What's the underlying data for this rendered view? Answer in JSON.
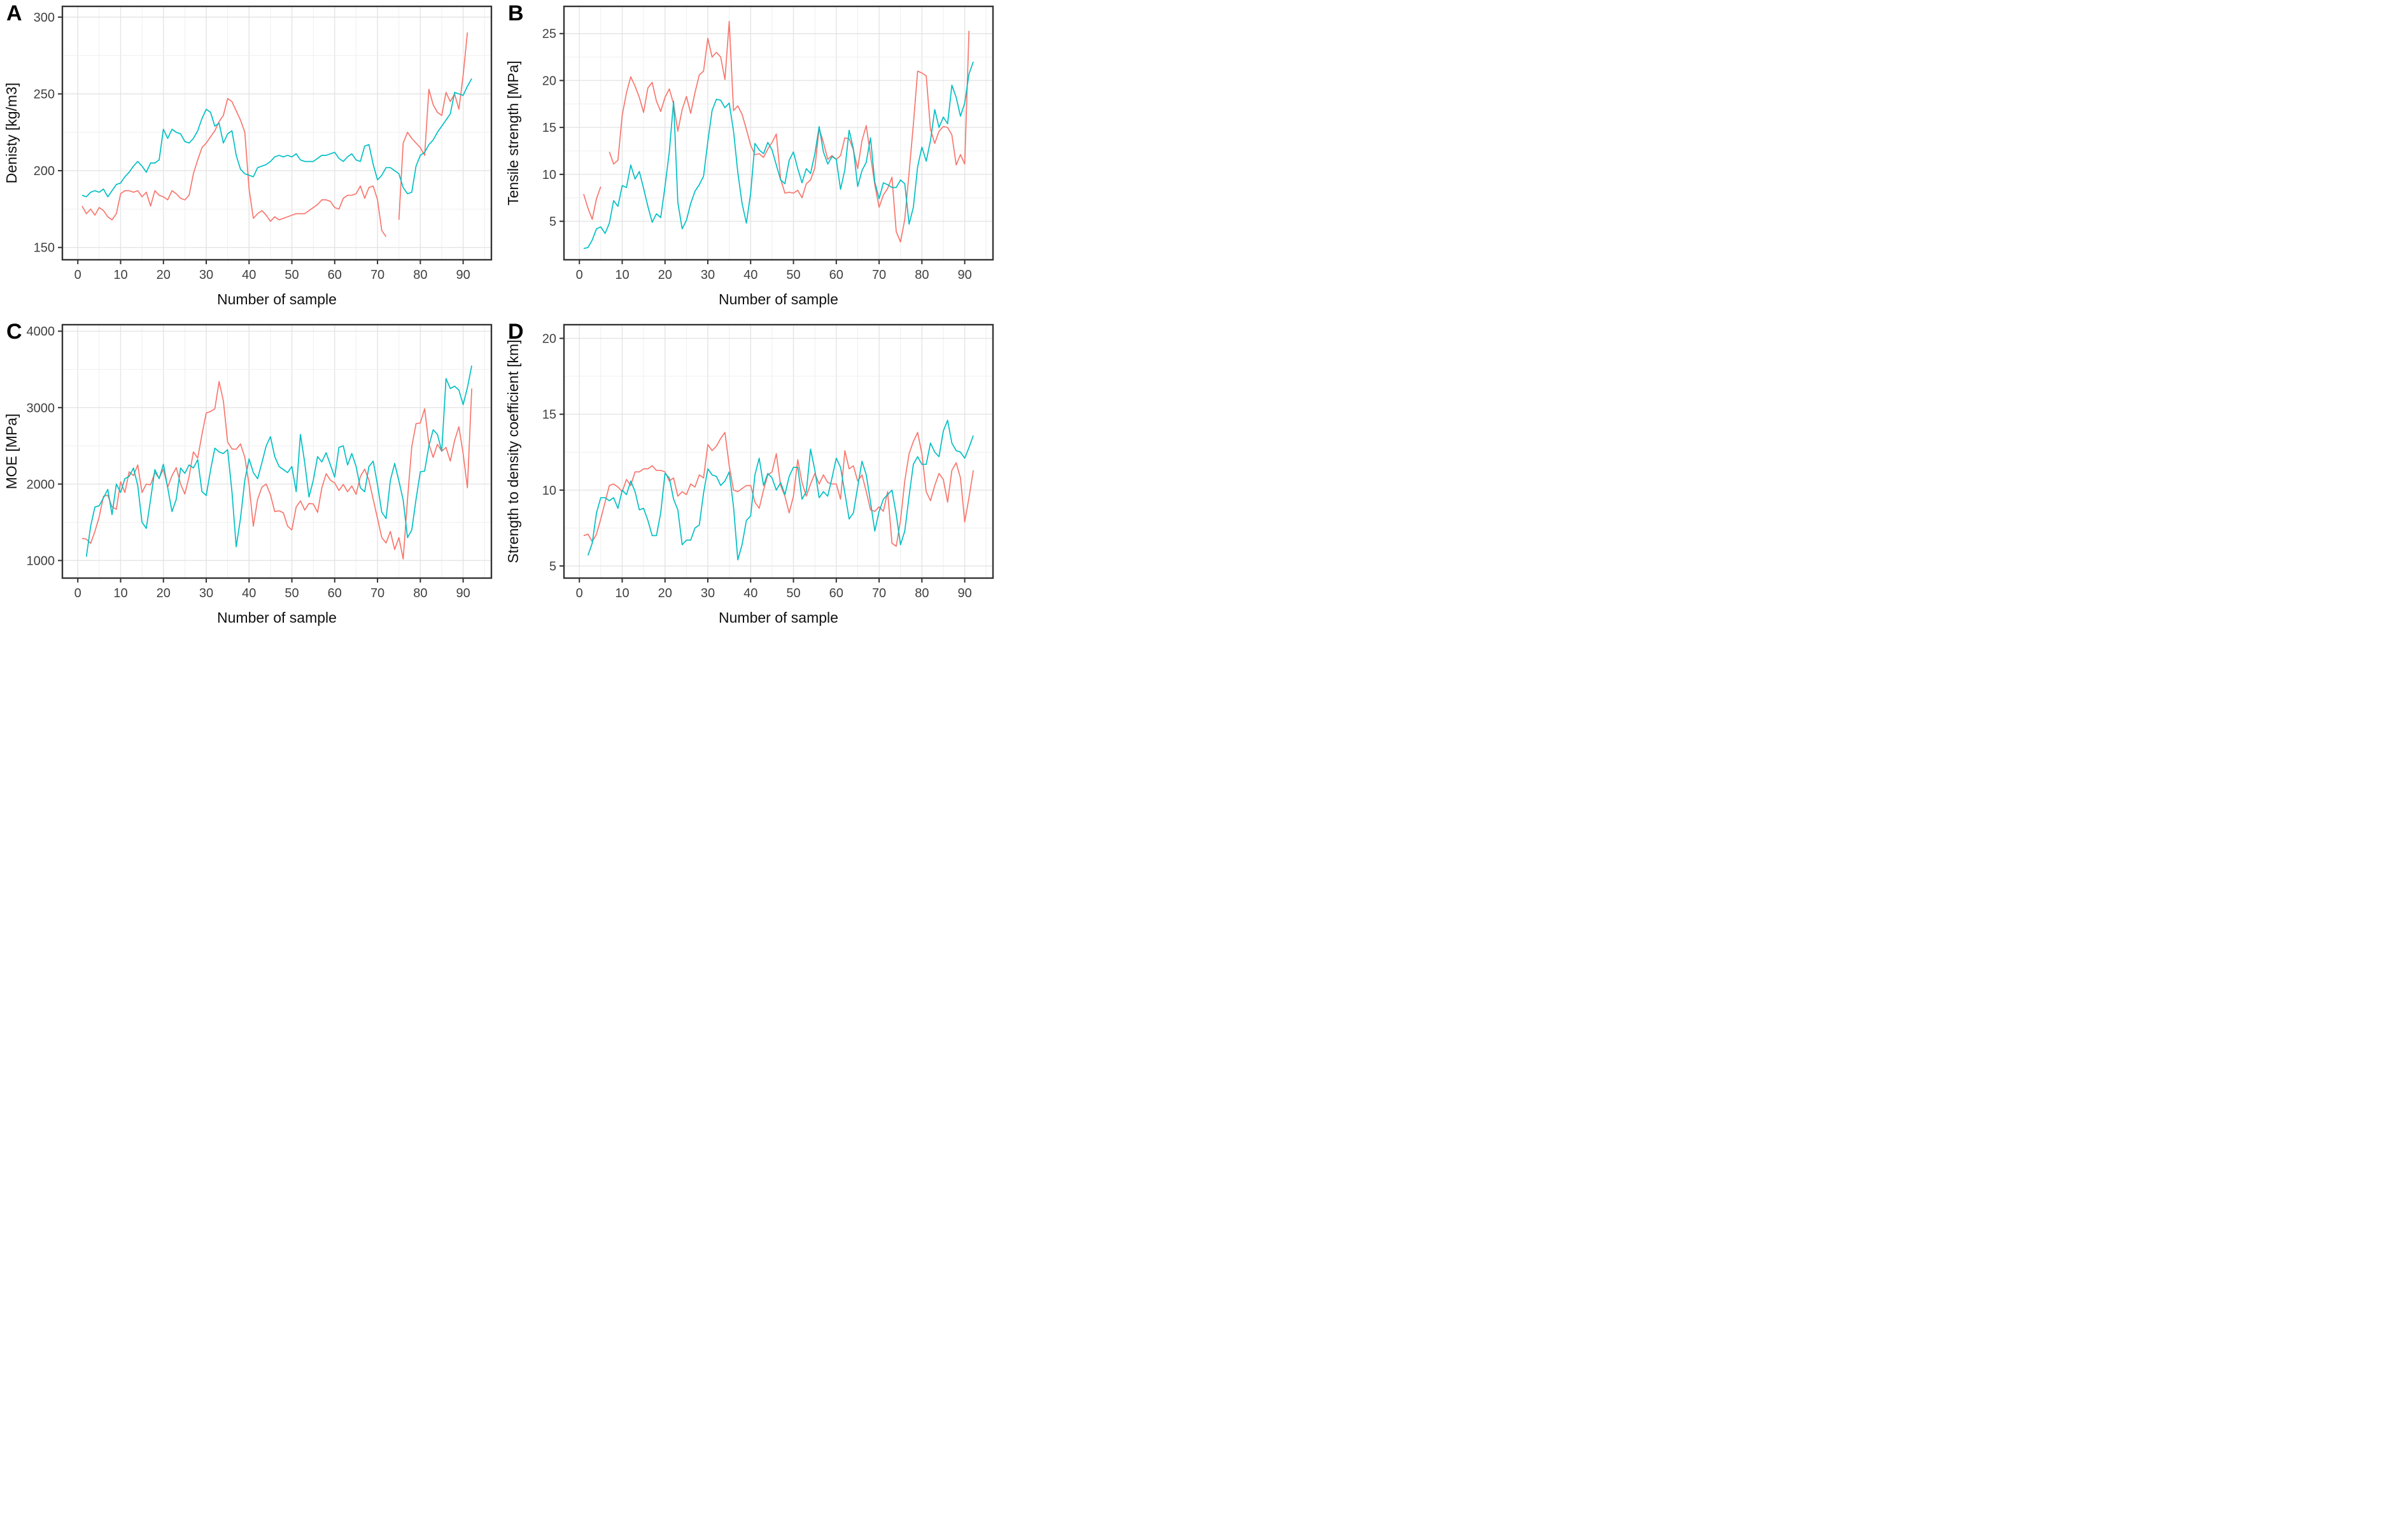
{
  "figure_title": "",
  "series_colors": {
    "red": "#F8766D",
    "teal": "#00BFC4"
  },
  "grid_colors": {
    "major": "#E4E4E4",
    "minor": "#EFEFEF",
    "border": "#333333"
  },
  "chart_data": {
    "type": "line",
    "panels": [
      {
        "letter": "A",
        "ylabel": "Denisty [kg/m3]",
        "xlabel": "Number of sample",
        "yticks": [
          150,
          200,
          250,
          300
        ],
        "yminor": [
          175,
          225,
          275
        ],
        "ylim": [
          142,
          307
        ],
        "xticks": [
          0,
          10,
          20,
          30,
          40,
          50,
          60,
          70,
          80,
          90
        ],
        "xlim": [
          -3.6,
          96.6
        ],
        "legend": "none",
        "series": [
          {
            "name": "red",
            "color": "#F8766D",
            "values": [
              177,
              172,
              175,
              171,
              176,
              174,
              170,
              168,
              172,
              185,
              187,
              187,
              186,
              187,
              183,
              186,
              177,
              187,
              184,
              183,
              181,
              187,
              185,
              182,
              181,
              184,
              198,
              207,
              215,
              218,
              222,
              226,
              232,
              236,
              247,
              245,
              239,
              233,
              225,
              188,
              169,
              172,
              174,
              171,
              167,
              170,
              168,
              169,
              170,
              171,
              172,
              172,
              172,
              174,
              176,
              178,
              181,
              181,
              180,
              176,
              175,
              182,
              184,
              184,
              185,
              190,
              182,
              189,
              190,
              181,
              161,
              157,
              null,
              null,
              168,
              218,
              225,
              221,
              218,
              215,
              210,
              253,
              243,
              238,
              236,
              251,
              245,
              250,
              240,
              262,
              290,
              null
            ]
          },
          {
            "name": "teal",
            "color": "#00BFC4",
            "values": [
              184,
              183,
              186,
              187,
              186,
              188,
              183,
              187,
              191,
              192,
              196,
              199,
              203,
              206,
              203,
              199,
              205,
              205,
              207,
              227,
              221,
              227,
              225,
              224,
              219,
              218,
              221,
              226,
              234,
              240,
              238,
              229,
              231,
              218,
              224,
              226,
              210,
              201,
              198,
              197,
              196,
              202,
              203,
              204,
              206,
              209,
              210,
              209,
              210,
              209,
              211,
              207,
              206,
              206,
              206,
              208,
              210,
              210,
              211,
              212,
              208,
              206,
              209,
              211,
              207,
              206,
              216,
              217,
              204,
              194,
              197,
              202,
              202,
              200,
              198,
              189,
              185,
              186,
              203,
              210,
              212,
              217,
              220,
              225,
              229,
              233,
              237,
              251,
              250,
              249,
              255,
              260
            ]
          }
        ]
      },
      {
        "letter": "B",
        "ylabel": "Tensile strength [MPa]",
        "xlabel": "Number of sample",
        "yticks": [
          5,
          10,
          15,
          20,
          25
        ],
        "yminor": [
          7.5,
          12.5,
          17.5,
          22.5
        ],
        "ylim": [
          0.9,
          27.9
        ],
        "xticks": [
          0,
          10,
          20,
          30,
          40,
          50,
          60,
          70,
          80,
          90
        ],
        "xlim": [
          -3.6,
          96.6
        ],
        "legend": "none",
        "series": [
          {
            "name": "red",
            "color": "#F8766D",
            "values": [
              7.9,
              6.4,
              5.2,
              7.4,
              8.7,
              null,
              12.4,
              11.1,
              11.5,
              16.3,
              18.7,
              20.4,
              19.4,
              18.2,
              16.6,
              19.2,
              19.8,
              17.8,
              16.7,
              18.2,
              19.1,
              17.5,
              14.6,
              16.9,
              18.3,
              16.5,
              18.7,
              20.6,
              21.0,
              24.5,
              22.5,
              23.0,
              22.5,
              20.1,
              26.3,
              16.8,
              17.3,
              16.4,
              14.8,
              13.1,
              12.1,
              12.2,
              11.8,
              12.7,
              13.4,
              14.3,
              9.5,
              8.0,
              8.1,
              8.0,
              8.3,
              7.5,
              9.0,
              9.4,
              10.7,
              14.9,
              13.4,
              11.6,
              12.0,
              11.6,
              12.0,
              13.9,
              13.8,
              12.6,
              10.6,
              13.6,
              15.2,
              12.0,
              8.9,
              6.5,
              7.8,
              8.5,
              9.7,
              3.9,
              2.8,
              5.2,
              10.2,
              15.3,
              21.0,
              20.8,
              20.5,
              14.8,
              13.3,
              14.6,
              15.1,
              15.0,
              14.2,
              11.0,
              12.1,
              11.1,
              25.3,
              null
            ]
          },
          {
            "name": "teal",
            "color": "#00BFC4",
            "values": [
              2.1,
              2.2,
              3.0,
              4.2,
              4.4,
              3.7,
              4.8,
              7.2,
              6.6,
              8.8,
              8.6,
              11.0,
              9.5,
              10.3,
              8.5,
              6.6,
              4.9,
              5.8,
              5.4,
              8.7,
              12.4,
              17.8,
              7.0,
              4.2,
              5.1,
              6.9,
              8.2,
              8.9,
              9.8,
              13.5,
              16.8,
              18.0,
              17.9,
              17.1,
              17.6,
              14.6,
              10.2,
              6.9,
              4.8,
              8.0,
              13.3,
              12.6,
              12.2,
              13.4,
              12.6,
              11.0,
              9.4,
              9.0,
              11.5,
              12.4,
              10.6,
              9.1,
              10.6,
              10.1,
              12.2,
              15.1,
              12.4,
              11.1,
              11.9,
              11.6,
              8.4,
              10.5,
              14.7,
              12.7,
              8.7,
              10.4,
              11.3,
              13.9,
              9.2,
              7.4,
              9.1,
              8.9,
              8.6,
              8.6,
              9.4,
              9.0,
              4.7,
              6.5,
              10.8,
              12.9,
              11.4,
              13.6,
              16.9,
              15.0,
              16.1,
              15.4,
              19.5,
              18.2,
              16.2,
              17.6,
              20.7,
              22.0
            ]
          }
        ]
      },
      {
        "letter": "C",
        "ylabel": "MOE [MPa]",
        "xlabel": "Number of sample",
        "yticks": [
          1000,
          2000,
          3000,
          4000
        ],
        "yminor": [
          1500,
          2500,
          3500
        ],
        "ylim": [
          770,
          4085
        ],
        "xticks": [
          0,
          10,
          20,
          30,
          40,
          50,
          60,
          70,
          80,
          90
        ],
        "xlim": [
          -3.6,
          96.6
        ],
        "legend": "none",
        "series": [
          {
            "name": "red",
            "color": "#F8766D",
            "values": [
              1290,
              1280,
              1225,
              1380,
              1570,
              1840,
              1855,
              1700,
              1670,
              2030,
              1890,
              2160,
              2110,
              2250,
              1890,
              2000,
              1990,
              2150,
              2080,
              2195,
              1960,
              2110,
              2215,
              2000,
              1870,
              2100,
              2420,
              2340,
              2650,
              2930,
              2950,
              2985,
              3340,
              3090,
              2550,
              2460,
              2455,
              2525,
              2350,
              1990,
              1450,
              1800,
              1960,
              2000,
              1860,
              1640,
              1650,
              1625,
              1450,
              1400,
              1700,
              1780,
              1660,
              1745,
              1740,
              1630,
              1950,
              2135,
              2050,
              2015,
              1915,
              1995,
              1900,
              1975,
              1865,
              2100,
              2195,
              2050,
              1800,
              1550,
              1300,
              1230,
              1380,
              1145,
              1300,
              1020,
              1800,
              2490,
              2790,
              2800,
              2985,
              2520,
              2350,
              2520,
              2430,
              2480,
              2300,
              2570,
              2750,
              2400,
              1950,
              3250
            ]
          },
          {
            "name": "teal",
            "color": "#00BFC4",
            "values": [
              null,
              1050,
              1450,
              1700,
              1715,
              1820,
              1930,
              1600,
              2000,
              1890,
              2070,
              2100,
              2210,
              1980,
              1500,
              1420,
              1800,
              2190,
              2070,
              2260,
              1950,
              1640,
              1800,
              2210,
              2140,
              2250,
              2210,
              2320,
              1900,
              1850,
              2180,
              2470,
              2420,
              2400,
              2450,
              1900,
              1180,
              1550,
              2050,
              2330,
              2150,
              2070,
              2280,
              2500,
              2620,
              2360,
              2230,
              2190,
              2150,
              2230,
              1900,
              2650,
              2280,
              1830,
              2050,
              2360,
              2290,
              2410,
              2250,
              2090,
              2480,
              2500,
              2250,
              2400,
              2230,
              1950,
              1900,
              2230,
              2300,
              1990,
              1630,
              1550,
              2050,
              2270,
              2040,
              1790,
              1300,
              1400,
              1800,
              2160,
              2170,
              2500,
              2710,
              2650,
              2430,
              3380,
              3250,
              3280,
              3230,
              3040,
              3260,
              3550
            ]
          }
        ]
      },
      {
        "letter": "D",
        "ylabel": "Strength to density coefficient [km]",
        "xlabel": "Number of sample",
        "yticks": [
          5,
          10,
          15,
          20
        ],
        "yminor": [
          7.5,
          12.5,
          17.5
        ],
        "ylim": [
          4.2,
          20.9
        ],
        "xticks": [
          0,
          10,
          20,
          30,
          40,
          50,
          60,
          70,
          80,
          90
        ],
        "xlim": [
          -3.6,
          96.6
        ],
        "legend": "none",
        "series": [
          {
            "name": "red",
            "color": "#F8766D",
            "values": [
              7.0,
              7.1,
              6.6,
              7.1,
              8.1,
              9.2,
              10.3,
              10.4,
              10.2,
              9.9,
              10.7,
              10.3,
              11.2,
              11.2,
              11.4,
              11.4,
              11.6,
              11.3,
              11.3,
              11.2,
              10.6,
              10.8,
              9.6,
              9.9,
              9.7,
              10.4,
              10.2,
              11.0,
              10.8,
              13.0,
              12.6,
              12.9,
              13.4,
              13.8,
              11.6,
              10.0,
              9.9,
              10.1,
              10.3,
              10.3,
              9.2,
              8.8,
              10.0,
              11.0,
              11.2,
              12.4,
              10.3,
              9.6,
              8.5,
              9.6,
              12.0,
              10.5,
              9.6,
              10.4,
              11.1,
              10.4,
              11.0,
              10.5,
              10.4,
              10.4,
              9.4,
              12.6,
              11.4,
              11.6,
              10.6,
              11.0,
              9.9,
              8.7,
              8.6,
              8.9,
              8.6,
              9.9,
              6.5,
              6.3,
              8.0,
              10.6,
              12.4,
              13.2,
              13.8,
              12.4,
              9.9,
              9.3,
              10.3,
              11.1,
              10.7,
              9.2,
              11.3,
              11.8,
              10.8,
              7.9,
              9.5,
              11.3
            ]
          },
          {
            "name": "teal",
            "color": "#00BFC4",
            "values": [
              null,
              5.7,
              6.5,
              8.5,
              9.5,
              9.5,
              9.3,
              9.5,
              8.8,
              10.0,
              9.7,
              10.6,
              9.9,
              8.7,
              8.8,
              8.0,
              7.0,
              7.0,
              8.5,
              11.1,
              10.8,
              9.4,
              8.7,
              6.4,
              6.7,
              6.7,
              7.5,
              7.7,
              9.8,
              11.4,
              11.0,
              10.9,
              10.3,
              10.6,
              11.2,
              8.9,
              5.4,
              6.4,
              8.0,
              8.3,
              11.0,
              12.1,
              10.3,
              11.1,
              10.8,
              10.0,
              10.5,
              9.7,
              10.9,
              11.5,
              11.5,
              9.4,
              9.9,
              12.7,
              11.3,
              9.5,
              9.9,
              9.6,
              10.8,
              12.1,
              11.5,
              9.8,
              8.1,
              8.5,
              10.2,
              11.9,
              11.0,
              9.2,
              7.3,
              8.6,
              9.4,
              9.7,
              10.0,
              8.4,
              6.4,
              7.3,
              9.6,
              11.7,
              12.2,
              11.7,
              11.7,
              13.1,
              12.5,
              12.2,
              13.9,
              14.6,
              13.1,
              12.6,
              12.5,
              12.1,
              12.8,
              13.6
            ]
          }
        ]
      }
    ]
  }
}
